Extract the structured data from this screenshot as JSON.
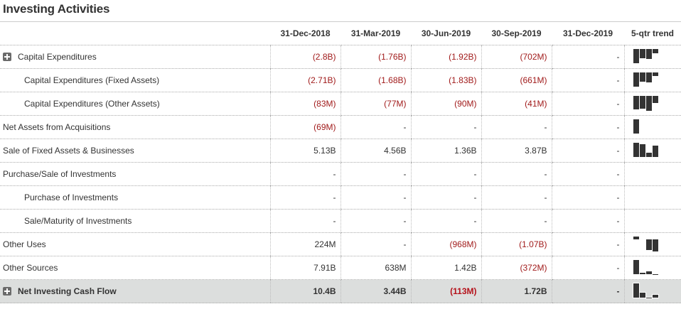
{
  "title": "Investing Activities",
  "columns": [
    "31-Dec-2018",
    "31-Mar-2019",
    "30-Jun-2019",
    "30-Sep-2019",
    "31-Dec-2019",
    "5-qtr trend"
  ],
  "rows": [
    {
      "label": "Capital Expenditures",
      "expandable": true,
      "indent": false,
      "values": [
        "(2.8B)",
        "(1.76B)",
        "(1.92B)",
        "(702M)",
        "-"
      ],
      "trend": [
        [
          0,
          20
        ],
        [
          0,
          13
        ],
        [
          0,
          14
        ],
        [
          0,
          6
        ]
      ]
    },
    {
      "label": "Capital Expenditures (Fixed Assets)",
      "expandable": false,
      "indent": true,
      "values": [
        "(2.71B)",
        "(1.68B)",
        "(1.83B)",
        "(661M)",
        "-"
      ],
      "trend": [
        [
          0,
          20
        ],
        [
          0,
          13
        ],
        [
          0,
          14
        ],
        [
          0,
          5
        ]
      ]
    },
    {
      "label": "Capital Expenditures (Other Assets)",
      "expandable": false,
      "indent": true,
      "values": [
        "(83M)",
        "(77M)",
        "(90M)",
        "(41M)",
        "-"
      ],
      "trend": [
        [
          0,
          19
        ],
        [
          0,
          18
        ],
        [
          0,
          21
        ],
        [
          0,
          10
        ]
      ]
    },
    {
      "label": "Net Assets from Acquisitions",
      "expandable": false,
      "indent": false,
      "values": [
        "(69M)",
        "-",
        "-",
        "-",
        "-"
      ],
      "trend": [
        [
          0,
          20
        ]
      ]
    },
    {
      "label": "Sale of Fixed Assets & Businesses",
      "expandable": false,
      "indent": false,
      "values": [
        "5.13B",
        "4.56B",
        "1.36B",
        "3.87B",
        "-"
      ],
      "trend": [
        [
          0,
          20
        ],
        [
          2,
          18
        ],
        [
          14,
          6
        ],
        [
          4,
          16
        ]
      ]
    },
    {
      "label": "Purchase/Sale of Investments",
      "expandable": false,
      "indent": false,
      "values": [
        "-",
        "-",
        "-",
        "-",
        "-"
      ],
      "trend": []
    },
    {
      "label": "Purchase of Investments",
      "expandable": false,
      "indent": true,
      "values": [
        "-",
        "-",
        "-",
        "-",
        "-"
      ],
      "trend": []
    },
    {
      "label": "Sale/Maturity of Investments",
      "expandable": false,
      "indent": true,
      "values": [
        "-",
        "-",
        "-",
        "-",
        "-"
      ],
      "trend": []
    },
    {
      "label": "Other Uses",
      "expandable": false,
      "indent": false,
      "values": [
        "224M",
        "-",
        "(968M)",
        "(1.07B)",
        "-"
      ],
      "trend": [
        [
          0,
          4
        ],
        [
          0,
          0
        ],
        [
          4,
          15
        ],
        [
          4,
          17
        ]
      ]
    },
    {
      "label": "Other Sources",
      "expandable": false,
      "indent": false,
      "values": [
        "7.91B",
        "638M",
        "1.42B",
        "(372M)",
        "-"
      ],
      "trend": [
        [
          0,
          20
        ],
        [
          18,
          2
        ],
        [
          16,
          4
        ],
        [
          20,
          1
        ]
      ]
    },
    {
      "label": "Net Investing Cash Flow",
      "expandable": true,
      "indent": false,
      "total": true,
      "values": [
        "10.4B",
        "3.44B",
        "(113M)",
        "1.72B",
        "-"
      ],
      "trend": [
        [
          0,
          20
        ],
        [
          13,
          7
        ],
        [
          20,
          1
        ],
        [
          16,
          4
        ]
      ]
    }
  ],
  "colors": {
    "negative": "#a11b1b",
    "total_bg": "#dcdedd",
    "spark": "#333333"
  }
}
